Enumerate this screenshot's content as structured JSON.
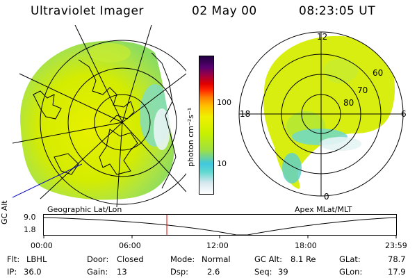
{
  "header": {
    "title": "Ultraviolet Imager",
    "date": "02 May 00",
    "time": "08:23:05 UT"
  },
  "colorbar": {
    "unit_label": "photon cm⁻²s⁻¹",
    "ticks": [
      "100",
      "10"
    ],
    "colors": [
      "#ffffff",
      "#d8e8f0",
      "#60d8d0",
      "#40c8e0",
      "#a0e040",
      "#c8f000",
      "#f0f000",
      "#ffc000",
      "#ff8000",
      "#ff2000",
      "#e00000",
      "#a00040",
      "#5a0070",
      "#200040"
    ]
  },
  "geo_panel": {
    "caption": "Geographic Lat/Lon"
  },
  "polar_panel": {
    "caption": "Apex MLat/MLT",
    "mlt_labels": {
      "top": "12",
      "left": "18",
      "right": "6",
      "bottom": "0"
    },
    "lat_labels": [
      "60",
      "70",
      "80"
    ]
  },
  "altitude_panel": {
    "y_axis_label": "GC Alt",
    "y_ticks": [
      "9.0",
      "1.8"
    ],
    "x_ticks": [
      "00:00",
      "06:00",
      "12:00",
      "18:00",
      "23:59"
    ],
    "current_time_hours": 8.38
  },
  "status": {
    "flt_label": "Flt:",
    "flt_value": "LBHL",
    "ip_label": "IP:",
    "ip_value": "36.0",
    "door_label": "Door:",
    "door_value": "Closed",
    "gain_label": "Gain:",
    "gain_value": "13",
    "mode_label": "Mode:",
    "mode_value": "Normal",
    "dsp_label": "Dsp:",
    "dsp_value": "2.6",
    "gcalt_label": "GC Alt:",
    "gcalt_value": "8.1 Re",
    "seq_label": "Seq:",
    "seq_value": "39",
    "glat_label": "GLat:",
    "glat_value": "78.7",
    "glon_label": "GLon:",
    "glon_value": "17.9"
  }
}
